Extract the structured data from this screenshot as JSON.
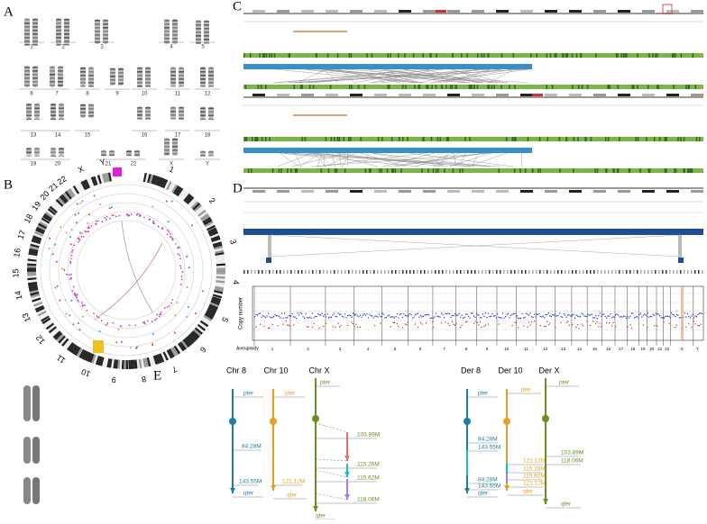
{
  "panels": [
    "A",
    "B",
    "C",
    "D",
    "E"
  ],
  "karyotype": {
    "labels": [
      "1",
      "2",
      "3",
      "4",
      "5",
      "6",
      "7",
      "8",
      "9",
      "10",
      "11",
      "12",
      "13",
      "14",
      "15",
      "16",
      "17",
      "18",
      "19",
      "20",
      "21",
      "22",
      "X",
      "Y"
    ]
  },
  "circos": {
    "labels": [
      "1",
      "2",
      "3",
      "4",
      "5",
      "6",
      "7",
      "8",
      "9",
      "10",
      "11",
      "12",
      "13",
      "14",
      "15",
      "16",
      "17",
      "18",
      "19",
      "20",
      "21",
      "22",
      "X",
      "Y"
    ]
  },
  "copy_number": {
    "y_label": "Copy number",
    "row_label": "Aneuploidy",
    "chromosomes": [
      "1",
      "2",
      "3",
      "4",
      "5",
      "6",
      "7",
      "8",
      "9",
      "10",
      "11",
      "12",
      "13",
      "14",
      "15",
      "16",
      "17",
      "18",
      "19",
      "20",
      "21",
      "22",
      "X",
      "Y"
    ]
  },
  "panel_e": {
    "chromosomes": [
      {
        "title": "Chr 8",
        "labels": [
          "pter",
          "84.28M",
          "143.55M",
          "qter"
        ]
      },
      {
        "title": "Chr 10",
        "labels": [
          "pter",
          "121.12M",
          "qter"
        ]
      },
      {
        "title": "Chr X",
        "labels": [
          "pter",
          "103.89M",
          "115.26M",
          "115.62M",
          "118.06M",
          "qter"
        ]
      },
      {
        "title": "Der 8",
        "labels": [
          "pter",
          "84.28M",
          "143.55M",
          "84.28M",
          "143.55M",
          "qter"
        ]
      },
      {
        "title": "Der 10",
        "labels": [
          "pter",
          "121.12M",
          "115.26M",
          "115.62M",
          "121.12M",
          "qter"
        ]
      },
      {
        "title": "Der X",
        "labels": [
          "pter",
          "103.89M",
          "118.06M",
          "qter"
        ]
      }
    ]
  }
}
